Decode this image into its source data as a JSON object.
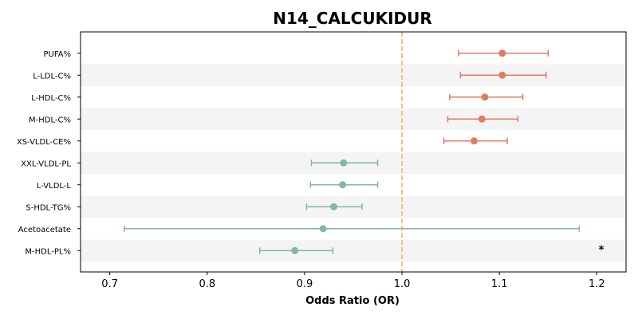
{
  "chart_data": {
    "type": "forest",
    "title": "N14_CALCUKIDUR",
    "xlabel": "Odds Ratio (OR)",
    "ylabel": "",
    "xlim": [
      0.67,
      1.23
    ],
    "xticks": [
      "0.7",
      "0.8",
      "0.9",
      "1.0",
      "1.1",
      "1.2"
    ],
    "reference_line": 1.0,
    "reference_color": "#f2c27a",
    "grid": false,
    "stripe_color": "#f4f4f4",
    "colors": {
      "positive": "#e07b62",
      "negative": "#82b89c"
    },
    "series": [
      {
        "label": "PUFA%",
        "or": 1.103,
        "lower": 1.058,
        "upper": 1.15,
        "direction": "positive",
        "annotation": ""
      },
      {
        "label": "L-LDL-C%",
        "or": 1.103,
        "lower": 1.06,
        "upper": 1.148,
        "direction": "positive",
        "annotation": ""
      },
      {
        "label": "L-HDL-C%",
        "or": 1.085,
        "lower": 1.049,
        "upper": 1.124,
        "direction": "positive",
        "annotation": ""
      },
      {
        "label": "M-HDL-C%",
        "or": 1.082,
        "lower": 1.047,
        "upper": 1.119,
        "direction": "positive",
        "annotation": ""
      },
      {
        "label": "XS-VLDL-CE%",
        "or": 1.074,
        "lower": 1.043,
        "upper": 1.108,
        "direction": "positive",
        "annotation": ""
      },
      {
        "label": "XXL-VLDL-PL",
        "or": 0.94,
        "lower": 0.907,
        "upper": 0.975,
        "direction": "negative",
        "annotation": ""
      },
      {
        "label": "L-VLDL-L",
        "or": 0.939,
        "lower": 0.906,
        "upper": 0.975,
        "direction": "negative",
        "annotation": ""
      },
      {
        "label": "S-HDL-TG%",
        "or": 0.93,
        "lower": 0.902,
        "upper": 0.959,
        "direction": "negative",
        "annotation": ""
      },
      {
        "label": "Acetoacetate",
        "or": 0.919,
        "lower": 0.715,
        "upper": 1.182,
        "direction": "negative",
        "annotation": ""
      },
      {
        "label": "M-HDL-PL%",
        "or": 0.89,
        "lower": 0.854,
        "upper": 0.929,
        "direction": "negative",
        "annotation": "*"
      }
    ]
  }
}
